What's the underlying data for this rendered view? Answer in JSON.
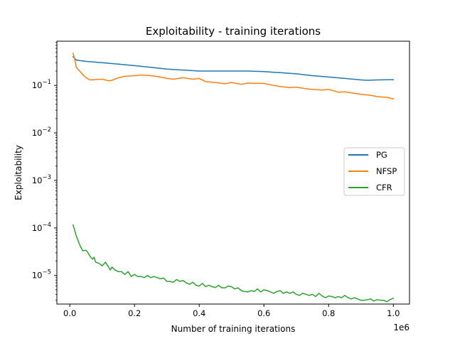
{
  "chart_data": {
    "type": "line",
    "title": "Exploitability - training iterations",
    "xlabel": "Number of training iterations",
    "ylabel": "Exploitability",
    "x_offset_label": "1e6",
    "x_scale_factor": 1000000,
    "xlim": [
      -40000,
      1050000
    ],
    "ylim": [
      2.5e-06,
      0.85
    ],
    "y_scale": "log",
    "x_ticks": [
      0,
      200000,
      400000,
      600000,
      800000,
      1000000
    ],
    "x_tick_labels": [
      "0.0",
      "0.2",
      "0.4",
      "0.6",
      "0.8",
      "1.0"
    ],
    "y_ticks": [
      1e-05,
      0.0001,
      0.001,
      0.01,
      0.1
    ],
    "y_tick_labels": [
      {
        "base": "10",
        "exp": "−5"
      },
      {
        "base": "10",
        "exp": "−4"
      },
      {
        "base": "10",
        "exp": "−3"
      },
      {
        "base": "10",
        "exp": "−2"
      },
      {
        "base": "10",
        "exp": "−1"
      }
    ],
    "grid": false,
    "legend_position": "center-right",
    "series": [
      {
        "name": "PG",
        "color": "#1f77b4",
        "x": [
          10000,
          20000,
          50000,
          100000,
          150000,
          200000,
          250000,
          300000,
          350000,
          400000,
          450000,
          500000,
          550000,
          600000,
          650000,
          700000,
          750000,
          800000,
          850000,
          900000,
          920000,
          950000,
          1000000
        ],
        "y": [
          0.4,
          0.34,
          0.32,
          0.3,
          0.28,
          0.26,
          0.24,
          0.22,
          0.21,
          0.2,
          0.2,
          0.2,
          0.2,
          0.195,
          0.185,
          0.175,
          0.16,
          0.15,
          0.14,
          0.13,
          0.128,
          0.13,
          0.132
        ]
      },
      {
        "name": "NFSP",
        "color": "#ff7f0e",
        "x": [
          10000,
          15000,
          20000,
          30000,
          40000,
          50000,
          60000,
          70000,
          80000,
          100000,
          120000,
          130000,
          150000,
          170000,
          200000,
          220000,
          250000,
          280000,
          300000,
          320000,
          350000,
          380000,
          400000,
          420000,
          450000,
          480000,
          500000,
          530000,
          550000,
          570000,
          600000,
          630000,
          650000,
          680000,
          700000,
          730000,
          750000,
          780000,
          800000,
          830000,
          850000,
          880000,
          900000,
          930000,
          950000,
          980000,
          1000000
        ],
        "y": [
          0.47,
          0.36,
          0.24,
          0.2,
          0.17,
          0.145,
          0.132,
          0.13,
          0.133,
          0.135,
          0.125,
          0.128,
          0.145,
          0.155,
          0.16,
          0.165,
          0.16,
          0.15,
          0.14,
          0.135,
          0.145,
          0.135,
          0.14,
          0.12,
          0.115,
          0.108,
          0.115,
          0.105,
          0.112,
          0.11,
          0.11,
          0.1,
          0.095,
          0.09,
          0.092,
          0.085,
          0.082,
          0.08,
          0.082,
          0.072,
          0.073,
          0.068,
          0.065,
          0.062,
          0.058,
          0.056,
          0.052
        ]
      },
      {
        "name": "CFR",
        "color": "#2ca02c",
        "x": [
          10000,
          15000,
          20000,
          25000,
          30000,
          35000,
          40000,
          50000,
          55000,
          60000,
          65000,
          70000,
          75000,
          80000,
          90000,
          100000,
          110000,
          120000,
          125000,
          130000,
          140000,
          150000,
          160000,
          170000,
          180000,
          190000,
          200000,
          210000,
          220000,
          230000,
          240000,
          250000,
          260000,
          270000,
          280000,
          290000,
          300000,
          310000,
          320000,
          330000,
          340000,
          350000,
          360000,
          370000,
          380000,
          390000,
          400000,
          410000,
          420000,
          430000,
          440000,
          450000,
          460000,
          470000,
          480000,
          490000,
          500000,
          510000,
          520000,
          530000,
          540000,
          550000,
          560000,
          570000,
          580000,
          590000,
          600000,
          610000,
          620000,
          630000,
          640000,
          650000,
          660000,
          670000,
          680000,
          690000,
          700000,
          710000,
          720000,
          730000,
          740000,
          750000,
          760000,
          770000,
          780000,
          790000,
          800000,
          810000,
          820000,
          830000,
          840000,
          850000,
          860000,
          870000,
          880000,
          890000,
          900000,
          910000,
          920000,
          930000,
          940000,
          950000,
          960000,
          970000,
          980000,
          990000,
          1000000
        ],
        "y": [
          0.000115,
          9e-05,
          6.8e-05,
          5.5e-05,
          4.5e-05,
          3.8e-05,
          3.3e-05,
          3.4e-05,
          3.1e-05,
          2.7e-05,
          2.4e-05,
          2.2e-05,
          2.4e-05,
          1.9e-05,
          1.8e-05,
          1.6e-05,
          1.9e-05,
          1.5e-05,
          1.3e-05,
          1.5e-05,
          1.3e-05,
          1.2e-05,
          1.2e-05,
          1.05e-05,
          1.2e-05,
          9.5e-06,
          1.05e-05,
          9.5e-06,
          9.5e-06,
          9e-06,
          1e-05,
          9e-06,
          9.5e-06,
          9e-06,
          8.5e-06,
          8.8e-06,
          7.5e-06,
          7.5e-06,
          7.2e-06,
          8.2e-06,
          7.5e-06,
          7.8e-06,
          7e-06,
          6.5e-06,
          7.2e-06,
          6.2e-06,
          6e-06,
          6.8e-06,
          5.8e-06,
          6.2e-06,
          5.8e-06,
          5.6e-06,
          6.2e-06,
          5.5e-06,
          5.5e-06,
          6e-06,
          5.8e-06,
          5.2e-06,
          5.5e-06,
          4.8e-06,
          4.6e-06,
          4.5e-06,
          4.8e-06,
          4.6e-06,
          5.2e-06,
          4.5e-06,
          5e-06,
          4.8e-06,
          4.5e-06,
          4.2e-06,
          4.6e-06,
          4.8e-06,
          4.2e-06,
          4.5e-06,
          4.2e-06,
          4.5e-06,
          4e-06,
          3.8e-06,
          4.2e-06,
          4e-06,
          3.8e-06,
          4e-06,
          3.6e-06,
          4.2e-06,
          3.7e-06,
          3.4e-06,
          3.7e-06,
          3.6e-06,
          3.4e-06,
          3.6e-06,
          3.4e-06,
          3.8e-06,
          3.4e-06,
          3.2e-06,
          3.4e-06,
          3.2e-06,
          3e-06,
          3e-06,
          3.1e-06,
          3.2e-06,
          2.9e-06,
          3.1e-06,
          3e-06,
          3e-06,
          2.8e-06,
          3.1e-06,
          3.3e-06
        ]
      }
    ]
  }
}
